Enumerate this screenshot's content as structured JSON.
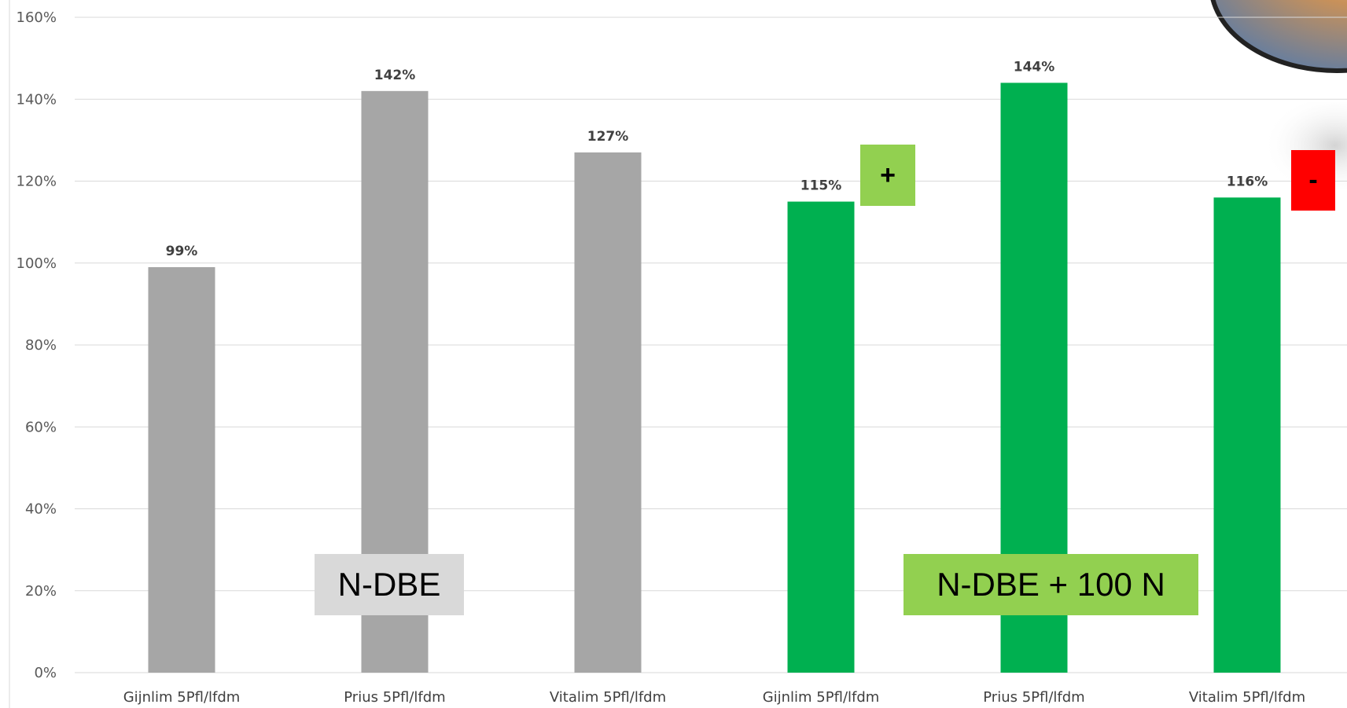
{
  "chart_data": {
    "type": "bar",
    "categories": [
      "Gijnlim 5Pfl/lfdm",
      "Prius 5Pfl/lfdm",
      "Vitalim 5Pfl/lfdm",
      "Gijnlim 5Pfl/lfdm",
      "Prius 5Pfl/lfdm",
      "Vitalim 5Pfl/lfdm"
    ],
    "values": [
      99,
      142,
      127,
      115,
      144,
      116
    ],
    "data_labels": [
      "99%",
      "142%",
      "127%",
      "115%",
      "144%",
      "116%"
    ],
    "bar_colors": [
      "#a6a6a6",
      "#a6a6a6",
      "#a6a6a6",
      "#00b050",
      "#00b050",
      "#00b050"
    ],
    "ylim": [
      0,
      160
    ],
    "yticks": [
      "0%",
      "20%",
      "40%",
      "60%",
      "80%",
      "100%",
      "120%",
      "140%",
      "160%"
    ],
    "grid": true,
    "title": "",
    "xlabel": "",
    "ylabel": ""
  },
  "annotations": {
    "group1_label": "N-DBE",
    "group1_color": "#d9d9d9",
    "group2_label": "N-DBE + 100 N",
    "group2_color": "#92d050",
    "plus_marker": "+",
    "plus_color": "#92d050",
    "minus_marker": "-",
    "minus_color": "#ff0000"
  }
}
